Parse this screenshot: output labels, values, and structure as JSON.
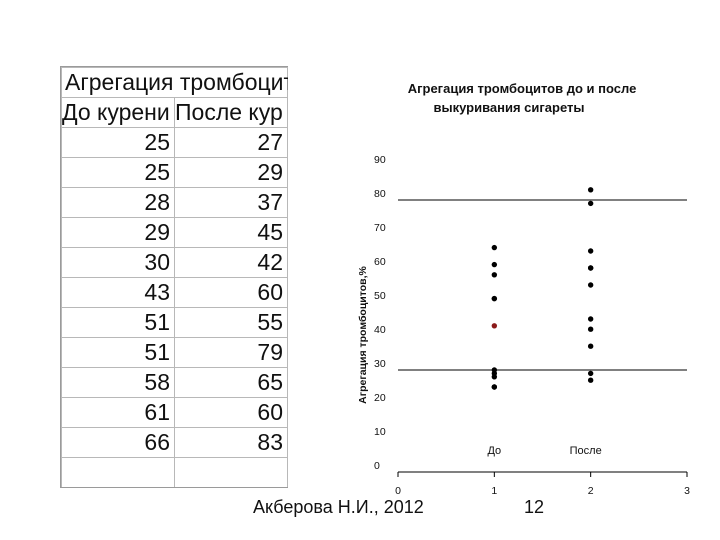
{
  "sheet": {
    "title": "Агрегация тромбоцит",
    "col1_header": "До курени",
    "col2_header": "После кур",
    "rows": [
      [
        "25",
        "27"
      ],
      [
        "25",
        "29"
      ],
      [
        "28",
        "37"
      ],
      [
        "29",
        "45"
      ],
      [
        "30",
        "42"
      ],
      [
        "43",
        "60"
      ],
      [
        "51",
        "55"
      ],
      [
        "51",
        "79"
      ],
      [
        "58",
        "65"
      ],
      [
        "61",
        "60"
      ],
      [
        "66",
        "83"
      ]
    ]
  },
  "footer": {
    "author": "Акберова Н.И., 2012",
    "page": "12"
  },
  "chart_data": {
    "type": "scatter",
    "title_line1": "Агрегация тромбоцитов до и после",
    "title_line2": "выкуривания сигареты",
    "ylabel": "Агрегация тромбоцитов,%",
    "xlim": [
      0,
      3
    ],
    "ylim": [
      0,
      90
    ],
    "xticks": [
      "0",
      "1",
      "2",
      "3"
    ],
    "yticks": [
      "0",
      "10",
      "20",
      "30",
      "40",
      "50",
      "60",
      "70",
      "80",
      "90"
    ],
    "hlines": [
      30,
      80
    ],
    "category_labels": [
      {
        "x": 1,
        "label": "До"
      },
      {
        "x": 2,
        "label": "После"
      }
    ],
    "point_color": "#000000",
    "highlight_color": "#8b1a1a",
    "series": [
      {
        "x": 1,
        "values": [
          25,
          25,
          28,
          29,
          30,
          43,
          51,
          51,
          58,
          61,
          66
        ],
        "highlight_index": 5
      },
      {
        "x": 2,
        "values": [
          27,
          29,
          37,
          45,
          42,
          60,
          55,
          79,
          65,
          60,
          83
        ]
      }
    ]
  }
}
